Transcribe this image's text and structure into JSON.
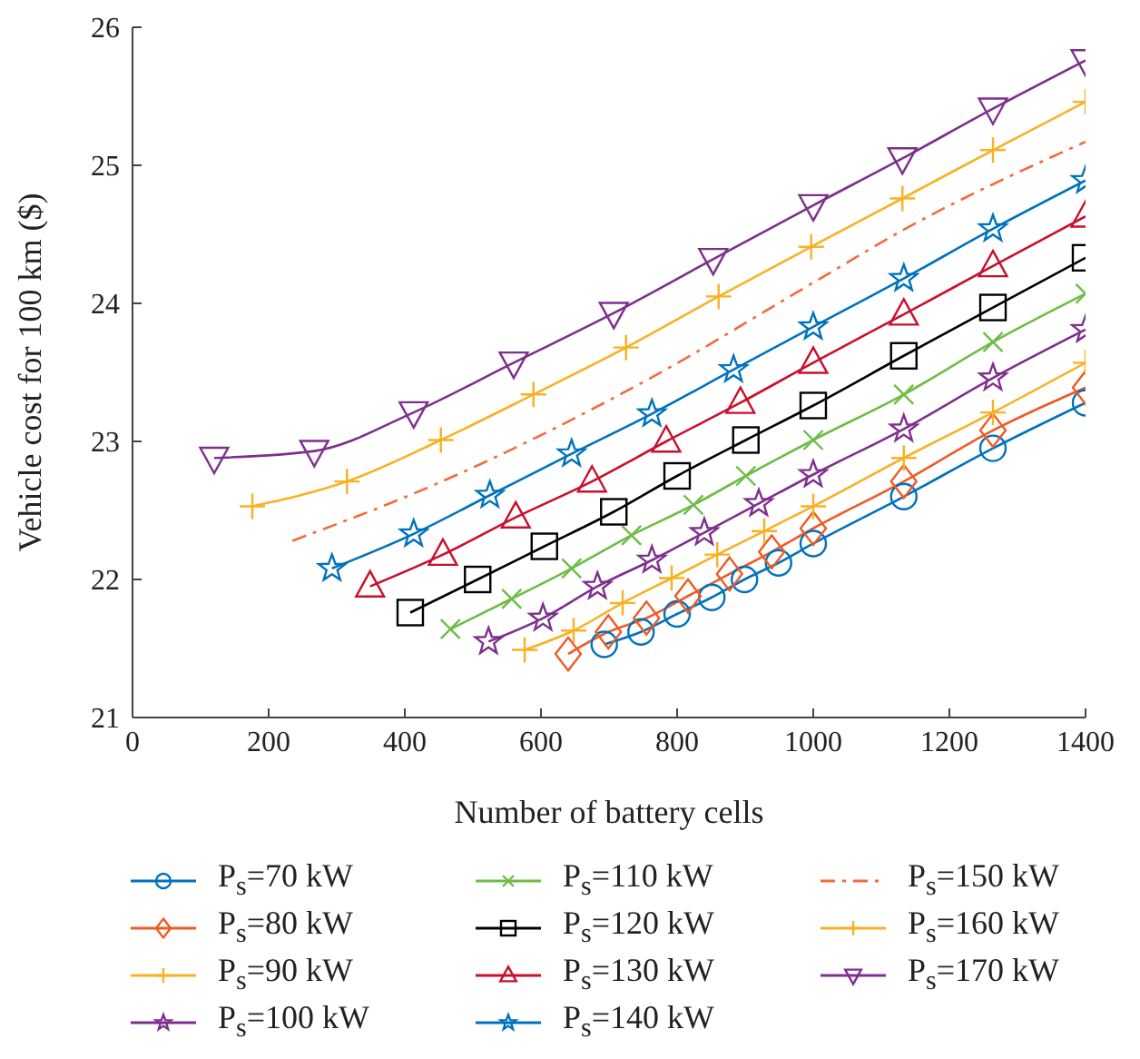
{
  "chart_data": {
    "type": "line",
    "xlabel": "Number of battery cells",
    "ylabel": "Vehicle cost for 100 km ($)",
    "xlim": [
      0,
      1400
    ],
    "xticks": [
      0,
      200,
      400,
      600,
      800,
      1000,
      1200,
      1400
    ],
    "ylim": [
      21,
      26
    ],
    "yticks": [
      21,
      22,
      23,
      24,
      25,
      26
    ],
    "grid": false,
    "legend": "bottom",
    "line_style": "solid",
    "series": [
      {
        "name": "P$_{s}$=70 kW",
        "color": "#0072bd",
        "marker": "circle",
        "x": [
          693,
          747,
          800,
          851,
          899,
          949,
          1000,
          1133,
          1264,
          1400
        ],
        "values": [
          21.53,
          21.62,
          21.75,
          21.87,
          22.0,
          22.12,
          22.26,
          22.6,
          22.95,
          23.28
        ]
      },
      {
        "name": "P$_{s}$=80 kW",
        "color": "#f05a24",
        "marker": "diamond",
        "x": [
          640,
          699,
          755,
          816,
          877,
          939,
          1000,
          1133,
          1264,
          1400
        ],
        "values": [
          21.46,
          21.62,
          21.72,
          21.88,
          22.04,
          22.2,
          22.37,
          22.71,
          23.08,
          23.39
        ]
      },
      {
        "name": "P$_{s}$=90 kW",
        "color": "#f9b122",
        "marker": "cross",
        "x": [
          576,
          648,
          720,
          792,
          859,
          928,
          1000,
          1133,
          1264,
          1400
        ],
        "values": [
          21.49,
          21.63,
          21.83,
          22.01,
          22.18,
          22.35,
          22.53,
          22.88,
          23.21,
          23.57
        ]
      },
      {
        "name": "P$_{s}$=100 kW",
        "color": "#7e2f8e",
        "marker": "star",
        "x": [
          523,
          603,
          683,
          763,
          840,
          920,
          1000,
          1133,
          1264,
          1400
        ],
        "values": [
          21.55,
          21.72,
          21.95,
          22.14,
          22.34,
          22.55,
          22.76,
          23.09,
          23.46,
          23.81
        ]
      },
      {
        "name": "P$_{s}$=110 kW",
        "color": "#6dbd45",
        "marker": "x",
        "x": [
          467,
          557,
          645,
          733,
          824,
          901,
          1000,
          1133,
          1264,
          1400
        ],
        "values": [
          21.64,
          21.86,
          22.08,
          22.32,
          22.54,
          22.75,
          23.01,
          23.34,
          23.72,
          24.07
        ]
      },
      {
        "name": "P$_{s}$=120 kW",
        "color": "#000000",
        "marker": "square",
        "x": [
          408,
          507,
          605,
          707,
          800,
          901,
          1000,
          1133,
          1264,
          1400
        ],
        "values": [
          21.76,
          22.0,
          22.24,
          22.49,
          22.75,
          23.01,
          23.26,
          23.62,
          23.97,
          24.33
        ]
      },
      {
        "name": "P$_{s}$=130 kW",
        "color": "#c8102e",
        "marker": "triangle",
        "x": [
          349,
          456,
          563,
          675,
          784,
          893,
          1000,
          1133,
          1264,
          1400
        ],
        "values": [
          21.95,
          22.18,
          22.45,
          22.71,
          23.0,
          23.28,
          23.57,
          23.92,
          24.27,
          24.63
        ]
      },
      {
        "name": "P$_{s}$=140 kW",
        "color": "#0072bd",
        "marker": "star",
        "x": [
          293,
          413,
          525,
          645,
          763,
          883,
          1000,
          1133,
          1264,
          1400
        ],
        "values": [
          22.08,
          22.33,
          22.61,
          22.91,
          23.2,
          23.52,
          23.83,
          24.18,
          24.54,
          24.89
        ]
      },
      {
        "name": "P$_{s}$=150 kW",
        "color": "#f26b3a",
        "marker": "none",
        "line_style": "dashdot",
        "x": [
          235,
          450,
          765,
          1000,
          1139,
          1400
        ],
        "values": [
          22.28,
          22.7,
          23.47,
          24.15,
          24.55,
          25.17
        ]
      },
      {
        "name": "P$_{s}$=160 kW",
        "color": "#f9b122",
        "marker": "cross",
        "x": [
          176,
          315,
          453,
          589,
          725,
          861,
          997,
          1131,
          1264,
          1400
        ],
        "values": [
          22.53,
          22.71,
          23.01,
          23.34,
          23.68,
          24.05,
          24.41,
          24.76,
          25.11,
          25.46
        ]
      },
      {
        "name": "P$_{s}$=170 kW",
        "color": "#7e2f8e",
        "marker": "triangle-down",
        "x": [
          120,
          267,
          413,
          560,
          707,
          853,
          1000,
          1131,
          1264,
          1400
        ],
        "values": [
          22.88,
          22.93,
          23.21,
          23.57,
          23.93,
          24.32,
          24.71,
          25.05,
          25.41,
          25.76
        ]
      }
    ]
  }
}
